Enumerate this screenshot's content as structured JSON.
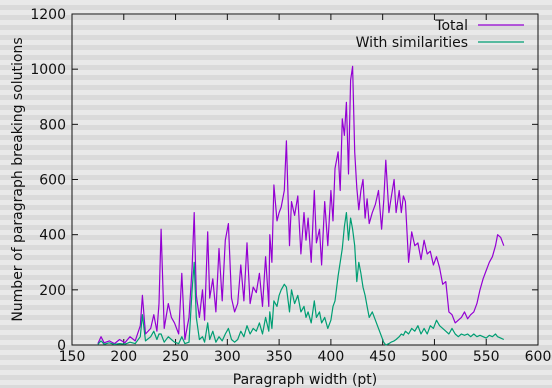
{
  "chart_data": {
    "type": "line",
    "title": "",
    "xlabel": "Paragraph width (pt)",
    "ylabel": "Number of paragraph breaking solutions",
    "xlim": [
      150,
      600
    ],
    "ylim": [
      0,
      1200
    ],
    "xticks": [
      150,
      200,
      250,
      300,
      350,
      400,
      450,
      500,
      550,
      600
    ],
    "yticks": [
      0,
      200,
      400,
      600,
      800,
      1000,
      1200
    ],
    "legend": "top-right",
    "grid": false,
    "series": [
      {
        "name": "Total",
        "color": "#9400d3",
        "points": [
          [
            175,
            5
          ],
          [
            178,
            30
          ],
          [
            181,
            8
          ],
          [
            186,
            15
          ],
          [
            191,
            5
          ],
          [
            196,
            20
          ],
          [
            201,
            8
          ],
          [
            206,
            30
          ],
          [
            211,
            15
          ],
          [
            216,
            70
          ],
          [
            218,
            180
          ],
          [
            221,
            40
          ],
          [
            226,
            60
          ],
          [
            229,
            110
          ],
          [
            232,
            50
          ],
          [
            234,
            150
          ],
          [
            236,
            420
          ],
          [
            239,
            60
          ],
          [
            243,
            150
          ],
          [
            246,
            100
          ],
          [
            249,
            80
          ],
          [
            253,
            40
          ],
          [
            256,
            260
          ],
          [
            259,
            20
          ],
          [
            263,
            100
          ],
          [
            266,
            280
          ],
          [
            268,
            480
          ],
          [
            270,
            180
          ],
          [
            273,
            100
          ],
          [
            276,
            200
          ],
          [
            278,
            90
          ],
          [
            281,
            410
          ],
          [
            283,
            170
          ],
          [
            286,
            240
          ],
          [
            289,
            120
          ],
          [
            292,
            350
          ],
          [
            295,
            160
          ],
          [
            298,
            380
          ],
          [
            301,
            440
          ],
          [
            304,
            170
          ],
          [
            307,
            120
          ],
          [
            310,
            150
          ],
          [
            313,
            290
          ],
          [
            316,
            160
          ],
          [
            319,
            370
          ],
          [
            322,
            150
          ],
          [
            325,
            210
          ],
          [
            328,
            190
          ],
          [
            331,
            260
          ],
          [
            334,
            140
          ],
          [
            337,
            320
          ],
          [
            340,
            140
          ],
          [
            341,
            400
          ],
          [
            343,
            300
          ],
          [
            345,
            580
          ],
          [
            348,
            450
          ],
          [
            350,
            480
          ],
          [
            352,
            500
          ],
          [
            355,
            560
          ],
          [
            357,
            740
          ],
          [
            360,
            360
          ],
          [
            362,
            520
          ],
          [
            365,
            470
          ],
          [
            368,
            540
          ],
          [
            371,
            330
          ],
          [
            374,
            480
          ],
          [
            376,
            380
          ],
          [
            378,
            460
          ],
          [
            381,
            300
          ],
          [
            384,
            560
          ],
          [
            386,
            370
          ],
          [
            389,
            420
          ],
          [
            391,
            290
          ],
          [
            394,
            520
          ],
          [
            397,
            360
          ],
          [
            400,
            560
          ],
          [
            402,
            450
          ],
          [
            404,
            640
          ],
          [
            407,
            700
          ],
          [
            409,
            560
          ],
          [
            411,
            820
          ],
          [
            413,
            760
          ],
          [
            415,
            880
          ],
          [
            417,
            620
          ],
          [
            419,
            960
          ],
          [
            421,
            1010
          ],
          [
            423,
            700
          ],
          [
            425,
            570
          ],
          [
            427,
            490
          ],
          [
            429,
            560
          ],
          [
            431,
            600
          ],
          [
            433,
            460
          ],
          [
            435,
            530
          ],
          [
            437,
            440
          ],
          [
            440,
            480
          ],
          [
            443,
            510
          ],
          [
            446,
            560
          ],
          [
            449,
            420
          ],
          [
            451,
            520
          ],
          [
            453,
            670
          ],
          [
            456,
            480
          ],
          [
            458,
            530
          ],
          [
            461,
            600
          ],
          [
            463,
            480
          ],
          [
            466,
            560
          ],
          [
            468,
            480
          ],
          [
            470,
            540
          ],
          [
            472,
            520
          ],
          [
            475,
            300
          ],
          [
            478,
            410
          ],
          [
            481,
            360
          ],
          [
            484,
            370
          ],
          [
            487,
            310
          ],
          [
            490,
            380
          ],
          [
            493,
            330
          ],
          [
            496,
            340
          ],
          [
            499,
            290
          ],
          [
            502,
            320
          ],
          [
            505,
            280
          ],
          [
            508,
            220
          ],
          [
            511,
            230
          ],
          [
            514,
            120
          ],
          [
            517,
            110
          ],
          [
            520,
            80
          ],
          [
            523,
            90
          ],
          [
            526,
            100
          ],
          [
            529,
            120
          ],
          [
            532,
            95
          ],
          [
            535,
            110
          ],
          [
            538,
            120
          ],
          [
            541,
            150
          ],
          [
            544,
            200
          ],
          [
            547,
            240
          ],
          [
            550,
            270
          ],
          [
            553,
            300
          ],
          [
            556,
            320
          ],
          [
            559,
            360
          ],
          [
            561,
            400
          ],
          [
            564,
            390
          ],
          [
            567,
            360
          ]
        ]
      },
      {
        "name": "With similarities",
        "color": "#009e73",
        "points": [
          [
            175,
            2
          ],
          [
            178,
            15
          ],
          [
            181,
            3
          ],
          [
            186,
            8
          ],
          [
            191,
            2
          ],
          [
            196,
            5
          ],
          [
            201,
            3
          ],
          [
            206,
            10
          ],
          [
            211,
            5
          ],
          [
            216,
            30
          ],
          [
            218,
            110
          ],
          [
            221,
            15
          ],
          [
            226,
            30
          ],
          [
            229,
            50
          ],
          [
            232,
            20
          ],
          [
            234,
            40
          ],
          [
            236,
            40
          ],
          [
            239,
            10
          ],
          [
            243,
            30
          ],
          [
            246,
            20
          ],
          [
            249,
            10
          ],
          [
            253,
            5
          ],
          [
            256,
            30
          ],
          [
            259,
            5
          ],
          [
            263,
            10
          ],
          [
            266,
            200
          ],
          [
            268,
            300
          ],
          [
            270,
            100
          ],
          [
            273,
            20
          ],
          [
            276,
            30
          ],
          [
            278,
            10
          ],
          [
            281,
            80
          ],
          [
            283,
            20
          ],
          [
            286,
            50
          ],
          [
            289,
            10
          ],
          [
            292,
            30
          ],
          [
            295,
            15
          ],
          [
            298,
            40
          ],
          [
            301,
            60
          ],
          [
            304,
            20
          ],
          [
            307,
            10
          ],
          [
            310,
            20
          ],
          [
            313,
            50
          ],
          [
            316,
            30
          ],
          [
            319,
            70
          ],
          [
            322,
            40
          ],
          [
            325,
            60
          ],
          [
            328,
            50
          ],
          [
            331,
            80
          ],
          [
            334,
            40
          ],
          [
            337,
            100
          ],
          [
            340,
            50
          ],
          [
            341,
            120
          ],
          [
            343,
            60
          ],
          [
            345,
            160
          ],
          [
            348,
            140
          ],
          [
            350,
            180
          ],
          [
            352,
            200
          ],
          [
            355,
            220
          ],
          [
            357,
            210
          ],
          [
            360,
            120
          ],
          [
            362,
            200
          ],
          [
            365,
            150
          ],
          [
            368,
            180
          ],
          [
            371,
            120
          ],
          [
            374,
            140
          ],
          [
            376,
            100
          ],
          [
            378,
            120
          ],
          [
            381,
            80
          ],
          [
            384,
            160
          ],
          [
            386,
            100
          ],
          [
            389,
            120
          ],
          [
            391,
            80
          ],
          [
            394,
            100
          ],
          [
            397,
            60
          ],
          [
            400,
            90
          ],
          [
            402,
            140
          ],
          [
            404,
            160
          ],
          [
            407,
            250
          ],
          [
            409,
            300
          ],
          [
            411,
            350
          ],
          [
            413,
            430
          ],
          [
            415,
            480
          ],
          [
            417,
            380
          ],
          [
            419,
            460
          ],
          [
            421,
            420
          ],
          [
            423,
            360
          ],
          [
            425,
            230
          ],
          [
            427,
            300
          ],
          [
            429,
            260
          ],
          [
            431,
            210
          ],
          [
            433,
            180
          ],
          [
            435,
            140
          ],
          [
            437,
            100
          ],
          [
            440,
            120
          ],
          [
            443,
            90
          ],
          [
            446,
            60
          ],
          [
            449,
            30
          ],
          [
            451,
            10
          ],
          [
            453,
            0
          ],
          [
            456,
            5
          ],
          [
            458,
            10
          ],
          [
            461,
            15
          ],
          [
            463,
            20
          ],
          [
            466,
            30
          ],
          [
            468,
            40
          ],
          [
            470,
            35
          ],
          [
            472,
            50
          ],
          [
            475,
            40
          ],
          [
            478,
            60
          ],
          [
            481,
            50
          ],
          [
            484,
            70
          ],
          [
            487,
            40
          ],
          [
            490,
            60
          ],
          [
            493,
            40
          ],
          [
            496,
            70
          ],
          [
            499,
            60
          ],
          [
            502,
            90
          ],
          [
            505,
            70
          ],
          [
            508,
            60
          ],
          [
            511,
            50
          ],
          [
            514,
            40
          ],
          [
            517,
            60
          ],
          [
            520,
            40
          ],
          [
            523,
            30
          ],
          [
            526,
            40
          ],
          [
            529,
            35
          ],
          [
            532,
            40
          ],
          [
            535,
            30
          ],
          [
            538,
            40
          ],
          [
            541,
            30
          ],
          [
            544,
            35
          ],
          [
            547,
            30
          ],
          [
            550,
            25
          ],
          [
            553,
            35
          ],
          [
            556,
            30
          ],
          [
            559,
            40
          ],
          [
            561,
            30
          ],
          [
            564,
            25
          ],
          [
            567,
            20
          ]
        ]
      }
    ]
  }
}
